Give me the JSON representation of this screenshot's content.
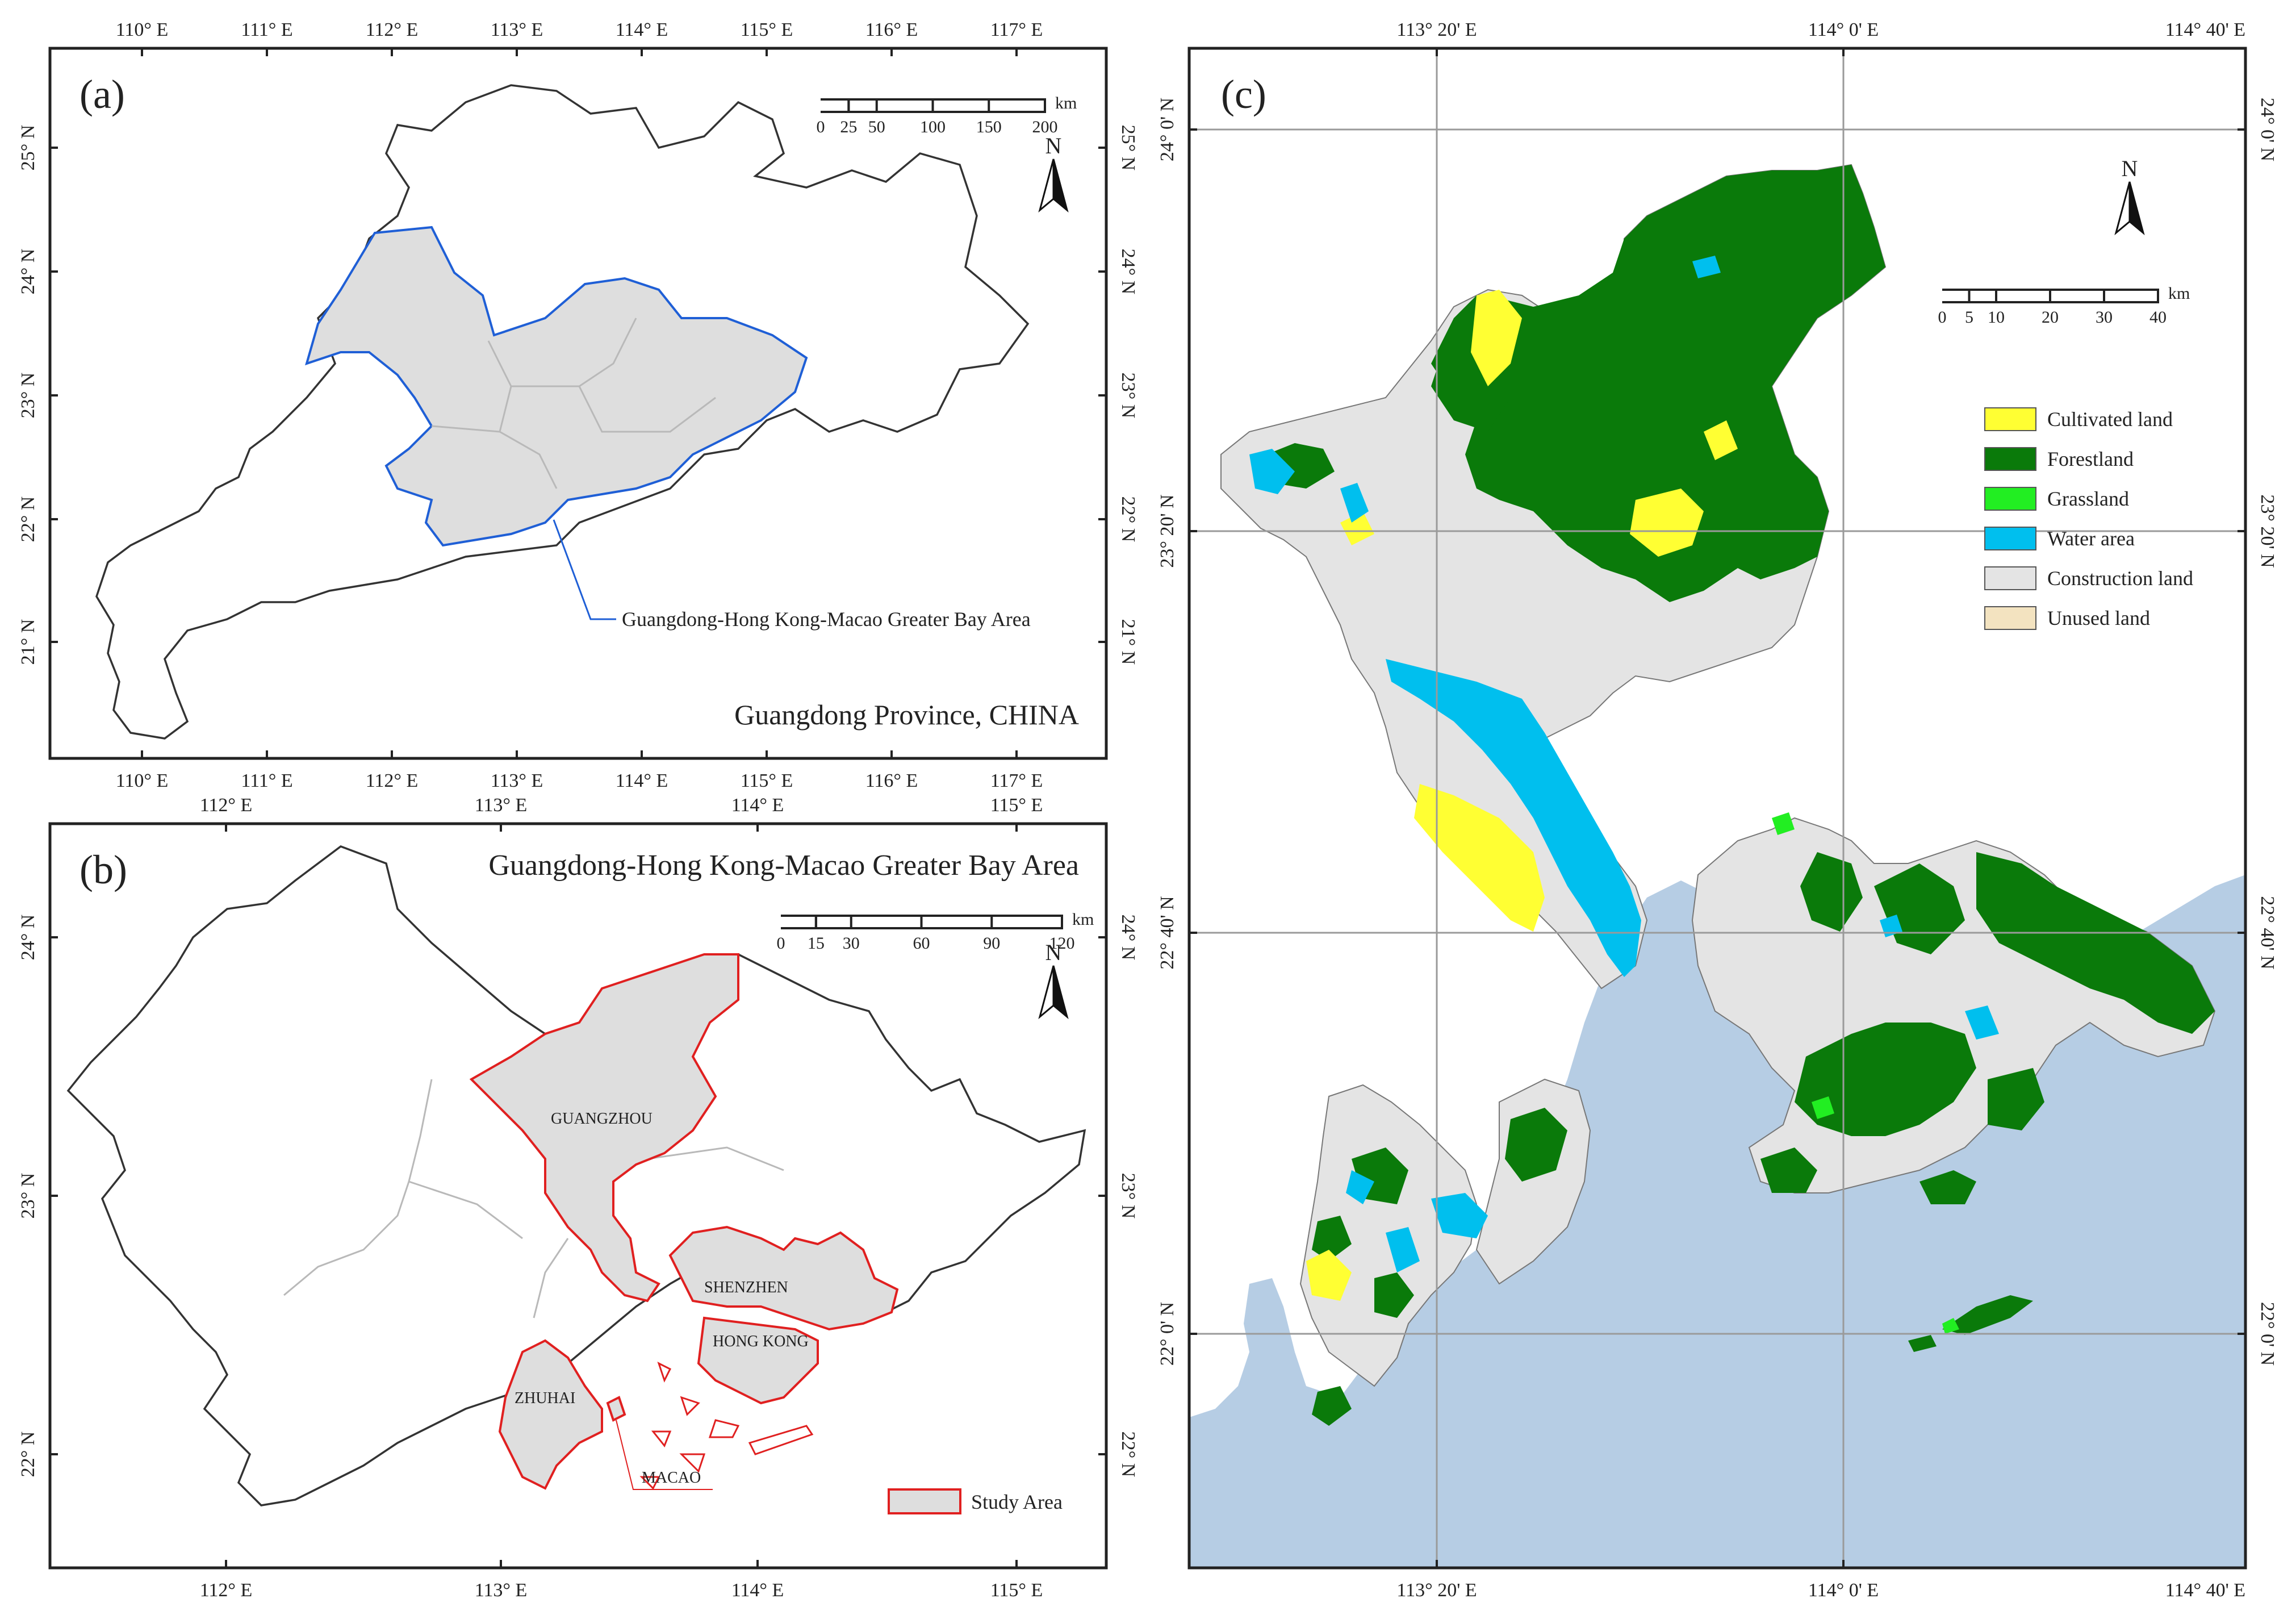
{
  "panels": {
    "a": {
      "label": "(a)",
      "subtitle": "Guangdong Province, CHINA",
      "callout": "Guangdong-Hong Kong-Macao Greater Bay Area",
      "lon_ticks": [
        "110° E",
        "111° E",
        "112° E",
        "113° E",
        "114° E",
        "115° E",
        "116° E",
        "117° E"
      ],
      "lat_ticks": [
        "25° N",
        "24° N",
        "23° N",
        "22° N",
        "21° N"
      ],
      "scalebar": {
        "ticks": [
          "0",
          "25",
          "50",
          "100",
          "150",
          "200"
        ],
        "unit": "km"
      },
      "north": "N",
      "colors": {
        "gba_fill": "#dedede",
        "gba_outline": "#1f5fd6",
        "province_outline": "#333333"
      }
    },
    "b": {
      "label": "(b)",
      "title": "Guangdong-Hong Kong-Macao Greater Bay Area",
      "lon_ticks": [
        "112° E",
        "113° E",
        "114° E",
        "115° E"
      ],
      "lat_ticks": [
        "24° N",
        "23° N",
        "22° N"
      ],
      "scalebar": {
        "ticks": [
          "0",
          "15",
          "30",
          "60",
          "90",
          "120"
        ],
        "unit": "km"
      },
      "north": "N",
      "cities": [
        "GUANGZHOU",
        "SHENZHEN",
        "HONG KONG",
        "ZHUHAI",
        "MACAO"
      ],
      "legend": "Study Area",
      "colors": {
        "study_fill": "#dedede",
        "study_outline": "#e02020"
      }
    },
    "c": {
      "label": "(c)",
      "lon_ticks": [
        "113° 20' E",
        "114° 0' E",
        "114° 40' E"
      ],
      "lat_ticks": [
        "24° 0' N",
        "23° 20' N",
        "22° 40' N",
        "22° 0' N"
      ],
      "scalebar": {
        "ticks": [
          "0",
          "5",
          "10",
          "20",
          "30",
          "40"
        ],
        "unit": "km"
      },
      "north": "N",
      "legend": [
        {
          "label": "Cultivated land",
          "color": "#ffff33"
        },
        {
          "label": "Forestland",
          "color": "#0a7a0a"
        },
        {
          "label": "Grassland",
          "color": "#22ee22"
        },
        {
          "label": "Water area",
          "color": "#00bfee"
        },
        {
          "label": "Construction land",
          "color": "#e4e4e4"
        },
        {
          "label": "Unused land",
          "color": "#f3e3c0"
        }
      ],
      "sea_color": "#b6cde4"
    }
  }
}
